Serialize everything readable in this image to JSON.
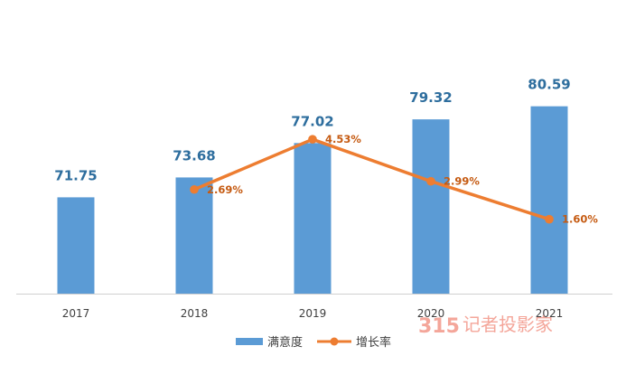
{
  "chart_data": {
    "type": "bar",
    "categories": [
      "2017",
      "2018",
      "2019",
      "2020",
      "2021"
    ],
    "series": [
      {
        "name": "满意度",
        "type": "bar",
        "values": [
          71.75,
          73.68,
          77.02,
          79.32,
          80.59
        ],
        "labels": [
          "71.75",
          "73.68",
          "77.02",
          "79.32",
          "80.59"
        ],
        "color": "#5B9BD5",
        "label_color": "#2E6E9E"
      },
      {
        "name": "增长率",
        "type": "line",
        "x": [
          "2018",
          "2019",
          "2020",
          "2021"
        ],
        "values": [
          2.69,
          4.53,
          2.99,
          1.6
        ],
        "labels": [
          "2.69%",
          "4.53%",
          "2.99%",
          "1.60%"
        ],
        "color": "#ED7D31",
        "label_color": "#C55A11"
      }
    ],
    "xlabel": "",
    "ylabel": "",
    "legend_position": "bottom",
    "grid": false
  },
  "watermark": {
    "number": "315",
    "text": "记者投影家",
    "color": "#F4A69A"
  }
}
